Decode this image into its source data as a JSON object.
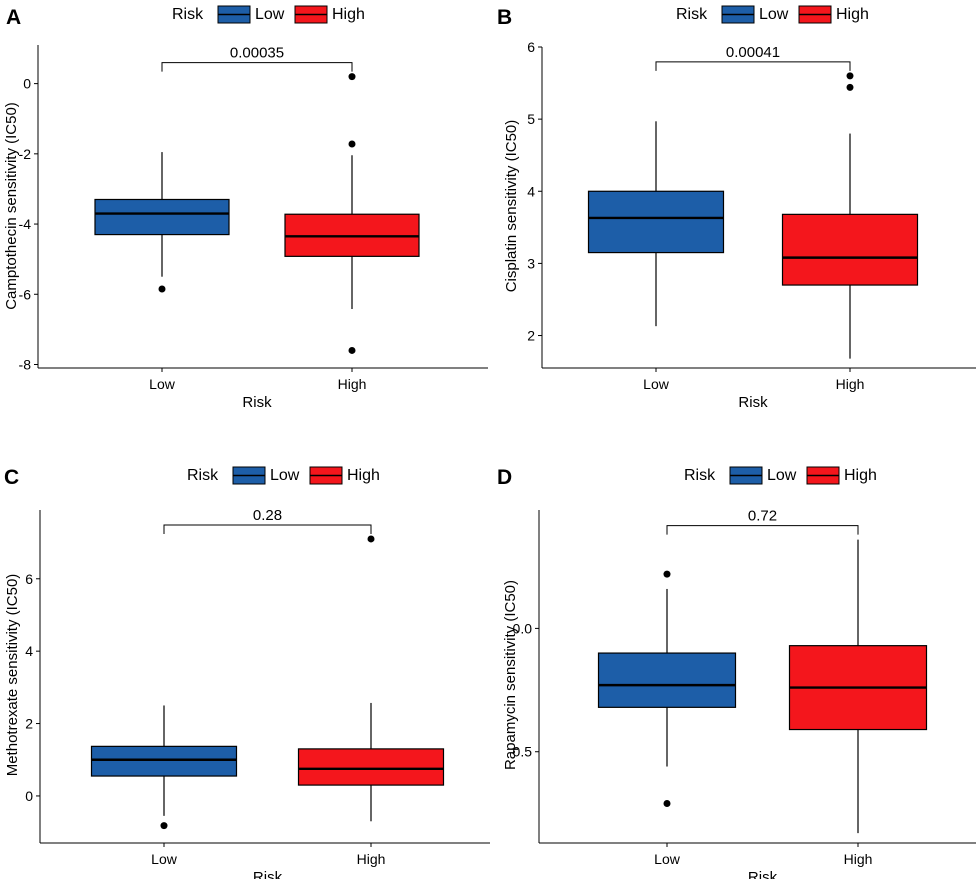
{
  "colors": {
    "low": "#1D5EA8",
    "high": "#F4161C",
    "ink": "#000000"
  },
  "chart_data": [
    {
      "panel": "A",
      "type": "box",
      "xlabel": "Risk",
      "ylabel": "Camptothecin sensitivity (IC50)",
      "ylim": [
        -8.1,
        1.1
      ],
      "yticks": [
        0,
        -2,
        -4,
        -6,
        -8
      ],
      "ytick_labels": [
        "0",
        "-2",
        "-4",
        "-6",
        "-8"
      ],
      "legend": {
        "title": "Risk",
        "entries": [
          "Low",
          "High"
        ]
      },
      "categories": [
        "Low",
        "High"
      ],
      "pvalue": "0.00035",
      "boxes": [
        {
          "name": "Low",
          "whisker_low": -5.5,
          "q1": -4.3,
          "median": -3.7,
          "q3": -3.3,
          "whisker_high": -1.95,
          "outliers": [
            -5.85
          ]
        },
        {
          "name": "High",
          "whisker_low": -6.42,
          "q1": -4.92,
          "median": -4.35,
          "q3": -3.72,
          "whisker_high": -2.04,
          "outliers": [
            0.2,
            -1.72,
            -7.6
          ]
        }
      ]
    },
    {
      "panel": "B",
      "type": "box",
      "xlabel": "Risk",
      "ylabel": "Cisplatin sensitivity (IC50)",
      "ylim": [
        1.55,
        6.0
      ],
      "yticks": [
        6,
        5,
        4,
        3,
        2
      ],
      "ytick_labels": [
        "6",
        "5",
        "4",
        "3",
        "2"
      ],
      "legend": {
        "title": "Risk",
        "entries": [
          "Low",
          "High"
        ]
      },
      "categories": [
        "Low",
        "High"
      ],
      "pvalue": "0.00041",
      "boxes": [
        {
          "name": "Low",
          "whisker_low": 2.13,
          "q1": 3.15,
          "median": 3.63,
          "q3": 4.0,
          "whisker_high": 4.97,
          "outliers": []
        },
        {
          "name": "High",
          "whisker_low": 1.68,
          "q1": 2.7,
          "median": 3.08,
          "q3": 3.68,
          "whisker_high": 4.8,
          "outliers": [
            5.6,
            5.44
          ]
        }
      ]
    },
    {
      "panel": "C",
      "type": "box",
      "xlabel": "Risk",
      "ylabel": "Methotrexate sensitivity (IC50)",
      "ylim": [
        -1.3,
        7.9
      ],
      "yticks": [
        6,
        4,
        2,
        0
      ],
      "ytick_labels": [
        "6",
        "4",
        "2",
        "0"
      ],
      "legend": {
        "title": "Risk",
        "entries": [
          "Low",
          "High"
        ]
      },
      "categories": [
        "Low",
        "High"
      ],
      "pvalue": "0.28",
      "boxes": [
        {
          "name": "Low",
          "whisker_low": -0.55,
          "q1": 0.55,
          "median": 1.0,
          "q3": 1.37,
          "whisker_high": 2.5,
          "outliers": [
            -0.82
          ]
        },
        {
          "name": "High",
          "whisker_low": -0.7,
          "q1": 0.3,
          "median": 0.75,
          "q3": 1.3,
          "whisker_high": 2.57,
          "outliers": [
            7.1
          ]
        }
      ]
    },
    {
      "panel": "D",
      "type": "box",
      "xlabel": "Risk",
      "ylabel": "Rapamycin sensitivity (IC50)",
      "ylim": [
        0.87,
        -0.48
      ],
      "yticks": [
        0.0,
        0.5
      ],
      "ytick_labels": [
        "0.0",
        "0.5"
      ],
      "legend": {
        "title": "Risk",
        "entries": [
          "Low",
          "High"
        ]
      },
      "categories": [
        "Low",
        "High"
      ],
      "pvalue": "0.72",
      "boxes": [
        {
          "name": "Low",
          "whisker_low": -0.16,
          "q1": 0.1,
          "median": 0.23,
          "q3": 0.32,
          "whisker_high": 0.56,
          "outliers": [
            -0.22,
            0.71
          ]
        },
        {
          "name": "High",
          "whisker_low": -0.36,
          "q1": 0.07,
          "median": 0.24,
          "q3": 0.41,
          "whisker_high": 0.83,
          "outliers": []
        }
      ]
    }
  ]
}
